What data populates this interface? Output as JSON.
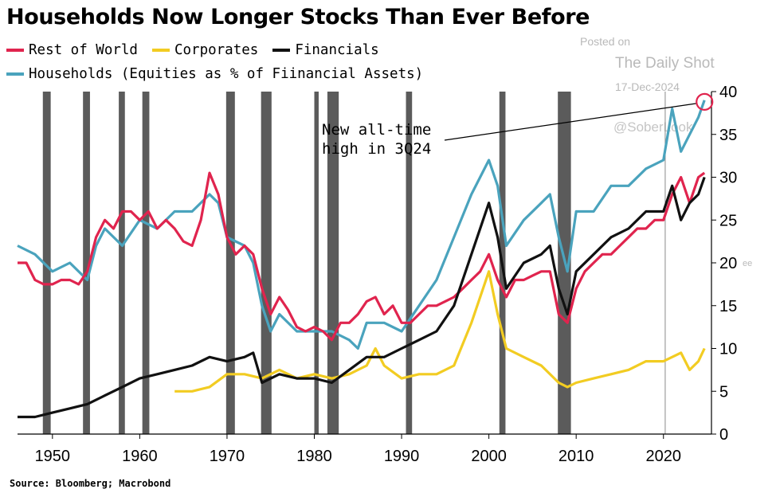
{
  "chart_data": {
    "type": "line",
    "title": "Households Now Longer Stocks Than Ever Before",
    "xlabel": "",
    "ylabel": "",
    "xlim": [
      1946,
      2025.5
    ],
    "ylim": [
      0,
      40
    ],
    "x_ticks": [
      1950,
      1960,
      1970,
      1980,
      1990,
      2000,
      2010,
      2020
    ],
    "y_ticks": [
      0,
      5,
      10,
      15,
      20,
      25,
      30,
      35,
      40
    ],
    "y_axis_side": "right",
    "legend_placement": "top-left",
    "recessions": [
      [
        1948.9,
        1949.8
      ],
      [
        1953.5,
        1954.3
      ],
      [
        1957.6,
        1958.3
      ],
      [
        1960.3,
        1961.1
      ],
      [
        1969.9,
        1970.9
      ],
      [
        1973.9,
        1975.1
      ],
      [
        1980.0,
        1980.5
      ],
      [
        1981.5,
        1982.8
      ],
      [
        1990.5,
        1991.2
      ],
      [
        2001.2,
        2001.9
      ],
      [
        2007.9,
        2009.4
      ]
    ],
    "vline": 2020.2,
    "annotation": {
      "text_lines": [
        "New all-time",
        "high in 3Q24"
      ],
      "point": [
        2024.7,
        38.8
      ]
    },
    "source": "Source: Bloomberg; Macrobond",
    "series": [
      {
        "name": "Rest of World",
        "color": "#e0244e",
        "points": [
          [
            1946,
            20
          ],
          [
            1947,
            20
          ],
          [
            1948,
            18
          ],
          [
            1949,
            17.5
          ],
          [
            1950,
            17.5
          ],
          [
            1951,
            18
          ],
          [
            1952,
            18
          ],
          [
            1953,
            17.5
          ],
          [
            1954,
            19
          ],
          [
            1955,
            23
          ],
          [
            1956,
            25
          ],
          [
            1957,
            24
          ],
          [
            1958,
            26
          ],
          [
            1959,
            26
          ],
          [
            1960,
            25
          ],
          [
            1961,
            26
          ],
          [
            1962,
            24
          ],
          [
            1963,
            25
          ],
          [
            1964,
            24
          ],
          [
            1965,
            22.5
          ],
          [
            1966,
            22
          ],
          [
            1967,
            25
          ],
          [
            1968,
            30.5
          ],
          [
            1969,
            28
          ],
          [
            1970,
            23
          ],
          [
            1971,
            21
          ],
          [
            1972,
            22
          ],
          [
            1973,
            21
          ],
          [
            1974,
            17
          ],
          [
            1975,
            14
          ],
          [
            1976,
            16
          ],
          [
            1977,
            14.5
          ],
          [
            1978,
            12.5
          ],
          [
            1979,
            12
          ],
          [
            1980,
            12.5
          ],
          [
            1981,
            12
          ],
          [
            1982,
            11
          ],
          [
            1983,
            13
          ],
          [
            1984,
            13
          ],
          [
            1985,
            14
          ],
          [
            1986,
            15.5
          ],
          [
            1987,
            16
          ],
          [
            1988,
            14
          ],
          [
            1989,
            15
          ],
          [
            1990,
            13
          ],
          [
            1991,
            13
          ],
          [
            1992,
            14
          ],
          [
            1993,
            15
          ],
          [
            1994,
            15
          ],
          [
            1995,
            15.5
          ],
          [
            1996,
            16
          ],
          [
            1997,
            17
          ],
          [
            1998,
            18
          ],
          [
            1999,
            19
          ],
          [
            2000,
            21
          ],
          [
            2001,
            18
          ],
          [
            2002,
            16
          ],
          [
            2003,
            18
          ],
          [
            2004,
            18
          ],
          [
            2005,
            18.5
          ],
          [
            2006,
            19
          ],
          [
            2007,
            19
          ],
          [
            2008,
            14
          ],
          [
            2009,
            13
          ],
          [
            2010,
            17
          ],
          [
            2011,
            19
          ],
          [
            2012,
            20
          ],
          [
            2013,
            21
          ],
          [
            2014,
            21
          ],
          [
            2015,
            22
          ],
          [
            2016,
            23
          ],
          [
            2017,
            24
          ],
          [
            2018,
            24
          ],
          [
            2019,
            25
          ],
          [
            2020,
            25
          ],
          [
            2021,
            28
          ],
          [
            2022,
            30
          ],
          [
            2023,
            27
          ],
          [
            2024,
            30
          ],
          [
            2024.7,
            30.5
          ]
        ]
      },
      {
        "name": "Corporates",
        "color": "#f2cc22",
        "points": [
          [
            1964,
            5
          ],
          [
            1966,
            5
          ],
          [
            1968,
            5.5
          ],
          [
            1970,
            7
          ],
          [
            1972,
            7
          ],
          [
            1974,
            6.5
          ],
          [
            1976,
            7.5
          ],
          [
            1978,
            6.5
          ],
          [
            1980,
            7
          ],
          [
            1982,
            6.5
          ],
          [
            1984,
            7
          ],
          [
            1986,
            8
          ],
          [
            1987,
            10
          ],
          [
            1988,
            8
          ],
          [
            1990,
            6.5
          ],
          [
            1992,
            7
          ],
          [
            1994,
            7
          ],
          [
            1996,
            8
          ],
          [
            1998,
            13
          ],
          [
            2000,
            19
          ],
          [
            2001,
            14
          ],
          [
            2002,
            10
          ],
          [
            2004,
            9
          ],
          [
            2006,
            8
          ],
          [
            2008,
            6
          ],
          [
            2009,
            5.5
          ],
          [
            2010,
            6
          ],
          [
            2012,
            6.5
          ],
          [
            2014,
            7
          ],
          [
            2016,
            7.5
          ],
          [
            2018,
            8.5
          ],
          [
            2020,
            8.5
          ],
          [
            2022,
            9.5
          ],
          [
            2023,
            7.5
          ],
          [
            2024,
            8.5
          ],
          [
            2024.7,
            10
          ]
        ]
      },
      {
        "name": "Financials",
        "color": "#111111",
        "points": [
          [
            1946,
            2
          ],
          [
            1948,
            2
          ],
          [
            1950,
            2.5
          ],
          [
            1952,
            3
          ],
          [
            1954,
            3.5
          ],
          [
            1956,
            4.5
          ],
          [
            1958,
            5.5
          ],
          [
            1960,
            6.5
          ],
          [
            1962,
            7
          ],
          [
            1964,
            7.5
          ],
          [
            1966,
            8
          ],
          [
            1968,
            9
          ],
          [
            1970,
            8.5
          ],
          [
            1972,
            9
          ],
          [
            1973,
            9.5
          ],
          [
            1974,
            6
          ],
          [
            1976,
            7
          ],
          [
            1978,
            6.5
          ],
          [
            1980,
            6.5
          ],
          [
            1982,
            6
          ],
          [
            1984,
            7.5
          ],
          [
            1986,
            9
          ],
          [
            1988,
            9
          ],
          [
            1990,
            10
          ],
          [
            1992,
            11
          ],
          [
            1994,
            12
          ],
          [
            1996,
            15
          ],
          [
            1998,
            21
          ],
          [
            2000,
            27
          ],
          [
            2001,
            23
          ],
          [
            2002,
            17
          ],
          [
            2004,
            20
          ],
          [
            2006,
            21
          ],
          [
            2007,
            22
          ],
          [
            2008,
            17
          ],
          [
            2009,
            14
          ],
          [
            2010,
            19
          ],
          [
            2012,
            21
          ],
          [
            2014,
            23
          ],
          [
            2016,
            24
          ],
          [
            2018,
            26
          ],
          [
            2020,
            26
          ],
          [
            2021,
            29
          ],
          [
            2022,
            25
          ],
          [
            2023,
            27
          ],
          [
            2024,
            28
          ],
          [
            2024.7,
            30
          ]
        ]
      },
      {
        "name": "Households (Equities as % of Fiinancial Assets)",
        "color": "#4aa3bd",
        "points": [
          [
            1946,
            22
          ],
          [
            1948,
            21
          ],
          [
            1950,
            19
          ],
          [
            1952,
            20
          ],
          [
            1954,
            18
          ],
          [
            1955,
            22
          ],
          [
            1956,
            24
          ],
          [
            1958,
            22
          ],
          [
            1960,
            25
          ],
          [
            1962,
            24
          ],
          [
            1964,
            26
          ],
          [
            1966,
            26
          ],
          [
            1968,
            28
          ],
          [
            1969,
            27
          ],
          [
            1970,
            23
          ],
          [
            1972,
            22
          ],
          [
            1973,
            20
          ],
          [
            1974,
            15
          ],
          [
            1975,
            12
          ],
          [
            1976,
            14
          ],
          [
            1978,
            12
          ],
          [
            1980,
            12
          ],
          [
            1982,
            12
          ],
          [
            1984,
            11
          ],
          [
            1985,
            10
          ],
          [
            1986,
            13
          ],
          [
            1988,
            13
          ],
          [
            1990,
            12
          ],
          [
            1992,
            15
          ],
          [
            1994,
            18
          ],
          [
            1996,
            23
          ],
          [
            1998,
            28
          ],
          [
            2000,
            32
          ],
          [
            2001,
            29
          ],
          [
            2002,
            22
          ],
          [
            2004,
            25
          ],
          [
            2006,
            27
          ],
          [
            2007,
            28
          ],
          [
            2008,
            23
          ],
          [
            2009,
            19
          ],
          [
            2010,
            26
          ],
          [
            2012,
            26
          ],
          [
            2014,
            29
          ],
          [
            2016,
            29
          ],
          [
            2018,
            31
          ],
          [
            2020,
            32
          ],
          [
            2021,
            38
          ],
          [
            2022,
            33
          ],
          [
            2023,
            35
          ],
          [
            2024,
            37
          ],
          [
            2024.7,
            39
          ]
        ]
      }
    ]
  },
  "watermark": {
    "posted": "Posted on",
    "name": "The Daily Shot",
    "date": "17-Dec-2024",
    "handle": "@SoberLook",
    "pct": "ee"
  }
}
